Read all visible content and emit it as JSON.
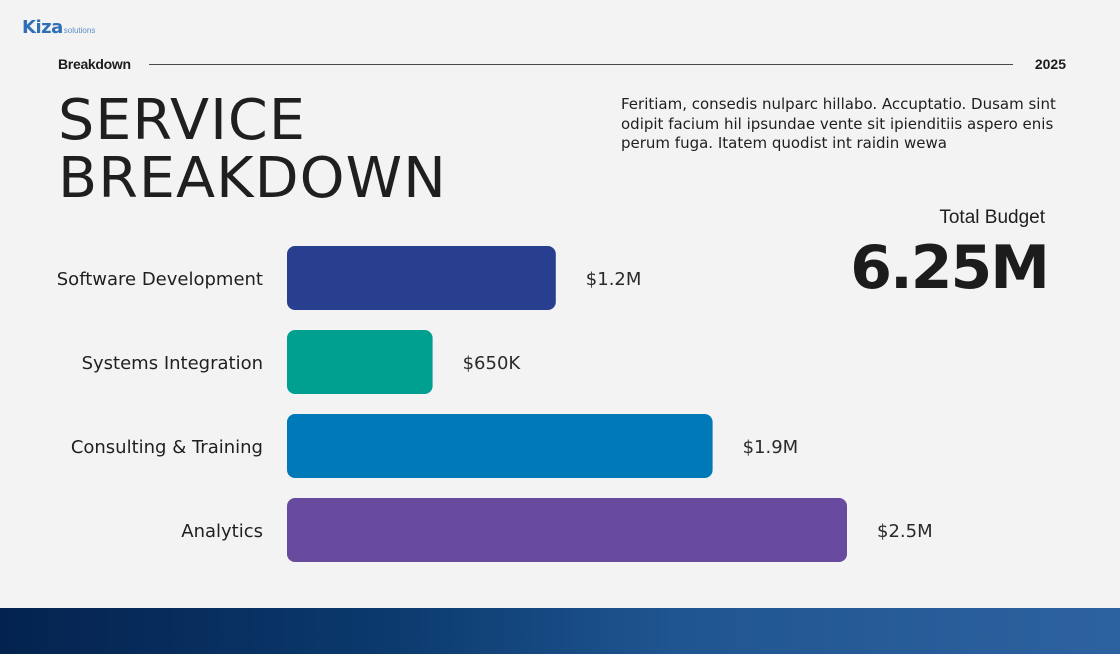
{
  "logo": {
    "main": "Kiza",
    "sub": "solutions"
  },
  "header": {
    "label": "Breakdown",
    "year": "2025"
  },
  "title": {
    "line1": "SERVICE",
    "line2": "BREAKDOWN"
  },
  "description": "Feritiam, consedis nulparc hillabo. Accuptatio. Dusam sint odipit facium hil ipsundae vente sit ipienditiis aspero enis perum fuga. Itatem quodist int raidin wewa",
  "budget": {
    "label": "Total Budget",
    "value": "6.25M"
  },
  "chart_data": {
    "type": "bar",
    "orientation": "horizontal",
    "categories": [
      "Software Development",
      "Systems Integration",
      "Consulting & Training",
      "Analytics"
    ],
    "values": [
      1.2,
      0.65,
      1.9,
      2.5
    ],
    "value_labels": [
      "$1.2M",
      "$650K",
      "$1.9M",
      "$2.5M"
    ],
    "colors": [
      "#283f8f",
      "#00a090",
      "#0079b8",
      "#684a9e"
    ],
    "xlim": [
      0,
      2.5
    ],
    "grid": false,
    "legend": "none"
  }
}
